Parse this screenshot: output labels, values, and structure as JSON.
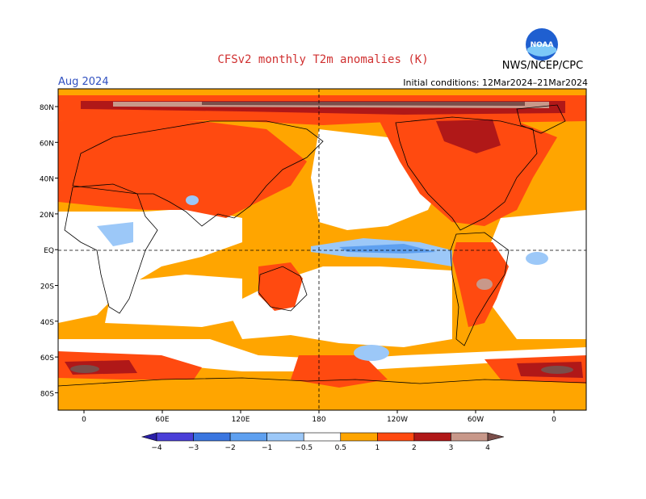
{
  "header": {
    "title": "CFSv2 monthly T2m anomalies (K)",
    "month": "Aug 2024",
    "initial_conditions": "Initial conditions: 12Mar2024–21Mar2024",
    "agency": "NWS/NCEP/CPC",
    "logo_text": "NOAA"
  },
  "axes": {
    "lat_labels": [
      "80N",
      "60N",
      "40N",
      "20N",
      "EQ",
      "20S",
      "40S",
      "60S",
      "80S"
    ],
    "lon_labels": [
      "0",
      "60E",
      "120E",
      "180",
      "120W",
      "60W",
      "0"
    ]
  },
  "legend": {
    "labels": [
      "−4",
      "−3",
      "−2",
      "−1",
      "−0.5",
      "0.5",
      "1",
      "2",
      "3",
      "4"
    ],
    "colors": [
      "#2a1fa8",
      "#4a3fd8",
      "#3a76e0",
      "#5ea0f0",
      "#9cc8f8",
      "#ffffff",
      "#ffa500",
      "#ff4a10",
      "#b01818",
      "#c8988a",
      "#7a4e4a"
    ]
  },
  "colors": {
    "warm_05": "#ffa500",
    "warm_1": "#ff4a10",
    "warm_2": "#b01818",
    "warm_3": "#c8988a",
    "warm_4": "#7a4e4a",
    "cool_05": "#9cc8f8",
    "cool_1": "#5ea0f0"
  }
}
